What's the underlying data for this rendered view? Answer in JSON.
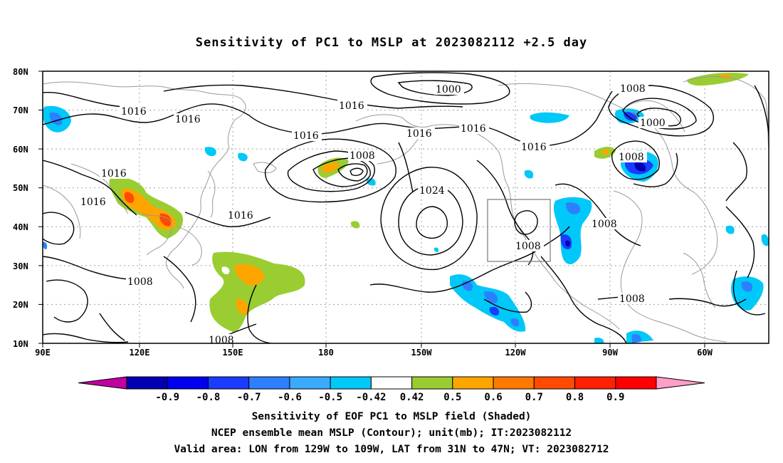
{
  "title": "Sensitivity of PC1 to MSLP at 2023082112 +2.5 day",
  "lat_ticks": [
    "80N",
    "70N",
    "60N",
    "50N",
    "40N",
    "30N",
    "20N",
    "10N"
  ],
  "lon_ticks": [
    "90E",
    "120E",
    "150E",
    "180",
    "150W",
    "120W",
    "90W",
    "60W"
  ],
  "contour_labels": [
    "1000",
    "1000",
    "1008",
    "1008",
    "1008",
    "1008",
    "1008",
    "1008",
    "1008",
    "1008",
    "1016",
    "1016",
    "1016",
    "1016",
    "1016",
    "1016",
    "1016",
    "1016",
    "1016",
    "1016",
    "1024"
  ],
  "colorbar": {
    "labels": [
      "-0.9",
      "-0.8",
      "-0.7",
      "-0.6",
      "-0.5",
      "-0.42",
      "0.42",
      "0.5",
      "0.6",
      "0.7",
      "0.8",
      "0.9"
    ],
    "colors": [
      "#c000a0",
      "#0000b0",
      "#0000ee",
      "#1a3cff",
      "#2c7fff",
      "#3aaaff",
      "#00c8f8",
      "#ffffff",
      "#9acd32",
      "#ffa500",
      "#ff7800",
      "#ff4a00",
      "#ff2000",
      "#ff0000",
      "#ff9ec8"
    ]
  },
  "captions": [
    "Sensitivity of EOF PC1 to MSLP field (Shaded)",
    "NCEP ensemble mean MSLP (Contour); unit(mb); IT:2023082112",
    "Valid area: LON from 129W to 109W, LAT from 31N to 47N; VT: 2023082712"
  ]
}
